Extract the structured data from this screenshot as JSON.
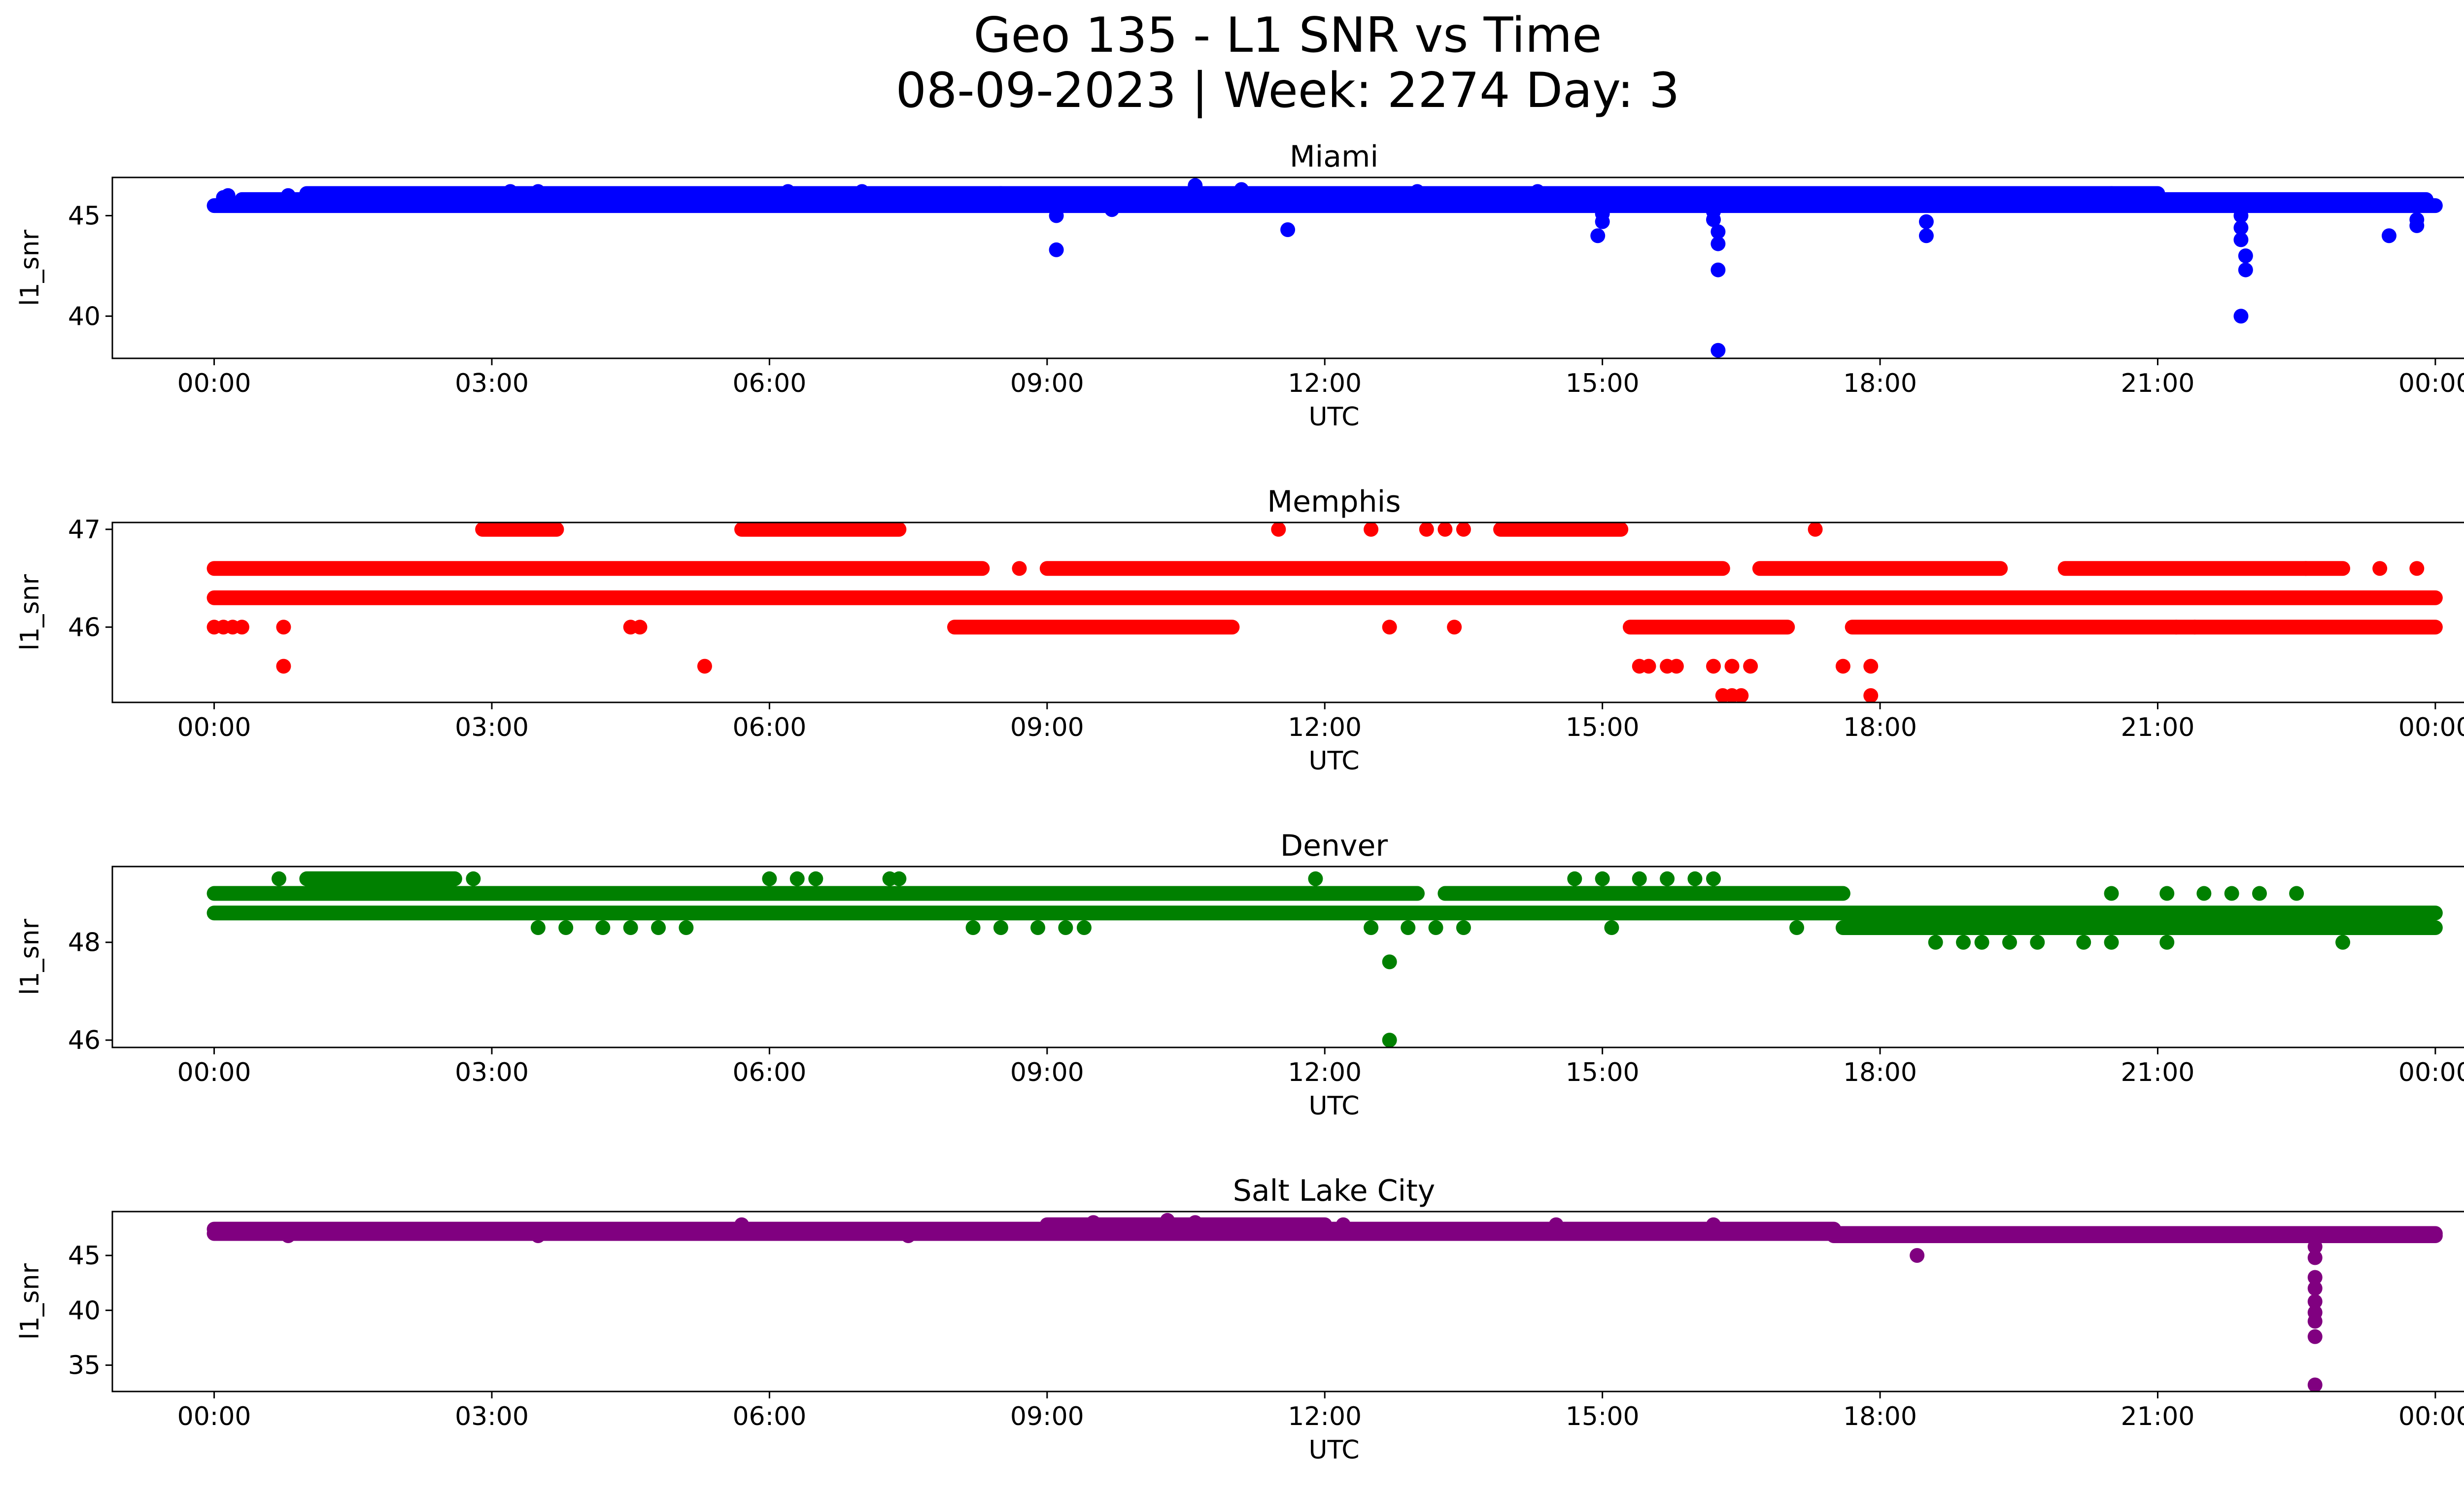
{
  "figure": {
    "title_line1": "Geo 135 - L1 SNR vs Time",
    "title_line2": "08-09-2023 | Week: 2274 Day: 3"
  },
  "chart_data": [
    {
      "type": "scatter",
      "title": "Miami",
      "xlabel": "UTC",
      "ylabel": "l1_snr",
      "color": "#0000ff",
      "xlim": [
        -1.1,
        25.3
      ],
      "ylim": [
        37.9,
        46.9
      ],
      "yticks": [
        40,
        45
      ],
      "xticks": [
        "00:00",
        "03:00",
        "06:00",
        "09:00",
        "12:00",
        "15:00",
        "18:00",
        "21:00",
        "00:00"
      ],
      "bands": [
        {
          "value": 45.5,
          "from": 0.0,
          "to": 24.0
        },
        {
          "value": 45.8,
          "from": 0.3,
          "to": 23.9
        },
        {
          "value": 46.1,
          "from": 1.0,
          "to": 21.0
        }
      ],
      "points": [
        [
          0.1,
          45.9
        ],
        [
          0.15,
          46.0
        ],
        [
          0.8,
          46.0
        ],
        [
          2.0,
          46.0
        ],
        [
          3.2,
          46.2
        ],
        [
          3.5,
          46.2
        ],
        [
          6.2,
          46.2
        ],
        [
          7.0,
          46.2
        ],
        [
          8.5,
          46.1
        ],
        [
          9.1,
          45.0
        ],
        [
          9.1,
          43.3
        ],
        [
          9.7,
          45.3
        ],
        [
          10.6,
          46.5
        ],
        [
          11.1,
          46.3
        ],
        [
          11.6,
          44.3
        ],
        [
          13.0,
          46.2
        ],
        [
          14.3,
          46.2
        ],
        [
          15.0,
          45.1
        ],
        [
          15.0,
          44.7
        ],
        [
          14.95,
          44.0
        ],
        [
          16.2,
          45.2
        ],
        [
          16.2,
          44.8
        ],
        [
          16.25,
          44.2
        ],
        [
          16.25,
          43.6
        ],
        [
          16.25,
          42.3
        ],
        [
          16.25,
          38.3
        ],
        [
          18.5,
          44.7
        ],
        [
          18.5,
          44.0
        ],
        [
          20.5,
          46.1
        ],
        [
          21.9,
          45.0
        ],
        [
          21.9,
          44.4
        ],
        [
          21.9,
          43.8
        ],
        [
          21.95,
          43.0
        ],
        [
          21.95,
          42.3
        ],
        [
          21.9,
          40.0
        ],
        [
          23.5,
          44.0
        ],
        [
          23.8,
          44.5
        ],
        [
          23.8,
          44.8
        ]
      ]
    },
    {
      "type": "scatter",
      "title": "Memphis",
      "xlabel": "UTC",
      "ylabel": "l1_snr",
      "color": "#ff0000",
      "xlim": [
        -1.1,
        25.3
      ],
      "ylim": [
        45.23,
        47.07
      ],
      "yticks": [
        46,
        47
      ],
      "xticks": [
        "00:00",
        "03:00",
        "06:00",
        "09:00",
        "12:00",
        "15:00",
        "18:00",
        "21:00",
        "00:00"
      ],
      "bands": [
        {
          "value": 46.6,
          "from": 0.0,
          "to": 8.3
        },
        {
          "value": 46.6,
          "from": 9.0,
          "to": 16.3
        },
        {
          "value": 46.6,
          "from": 16.7,
          "to": 19.3
        },
        {
          "value": 46.6,
          "from": 20.0,
          "to": 23.0
        },
        {
          "value": 46.3,
          "from": 0.0,
          "to": 24.0
        },
        {
          "value": 46.0,
          "from": 8.0,
          "to": 11.0
        },
        {
          "value": 46.0,
          "from": 15.3,
          "to": 17.0
        },
        {
          "value": 46.0,
          "from": 17.7,
          "to": 24.0
        },
        {
          "value": 47.0,
          "from": 2.9,
          "to": 3.7
        },
        {
          "value": 47.0,
          "from": 5.7,
          "to": 7.4
        },
        {
          "value": 47.0,
          "from": 13.9,
          "to": 15.2
        }
      ],
      "points": [
        [
          0.0,
          46.0
        ],
        [
          0.1,
          46.0
        ],
        [
          0.2,
          46.0
        ],
        [
          0.3,
          46.0
        ],
        [
          0.75,
          46.0
        ],
        [
          0.75,
          45.6
        ],
        [
          4.5,
          46.0
        ],
        [
          4.6,
          46.0
        ],
        [
          5.3,
          45.6
        ],
        [
          8.7,
          46.6
        ],
        [
          12.7,
          46.0
        ],
        [
          11.5,
          47.0
        ],
        [
          12.5,
          47.0
        ],
        [
          13.1,
          47.0
        ],
        [
          13.3,
          47.0
        ],
        [
          13.5,
          47.0
        ],
        [
          13.4,
          46.0
        ],
        [
          15.4,
          45.6
        ],
        [
          15.5,
          45.6
        ],
        [
          15.7,
          45.6
        ],
        [
          15.8,
          45.6
        ],
        [
          16.2,
          45.6
        ],
        [
          16.4,
          45.6
        ],
        [
          16.6,
          45.6
        ],
        [
          16.3,
          45.3
        ],
        [
          16.4,
          45.3
        ],
        [
          16.5,
          45.3
        ],
        [
          17.3,
          47.0
        ],
        [
          17.6,
          45.6
        ],
        [
          17.9,
          45.6
        ],
        [
          17.9,
          45.3
        ],
        [
          22.6,
          46.6
        ],
        [
          23.4,
          46.6
        ],
        [
          23.8,
          46.6
        ],
        [
          21.2,
          46.0
        ],
        [
          21.4,
          46.0
        ]
      ]
    },
    {
      "type": "scatter",
      "title": "Denver",
      "xlabel": "UTC",
      "ylabel": "l1_snr",
      "color": "#008000",
      "xlim": [
        -1.1,
        25.3
      ],
      "ylim": [
        45.85,
        49.55
      ],
      "yticks": [
        46,
        48
      ],
      "xticks": [
        "00:00",
        "03:00",
        "06:00",
        "09:00",
        "12:00",
        "15:00",
        "18:00",
        "21:00",
        "00:00"
      ],
      "bands": [
        {
          "value": 49.0,
          "from": 0.0,
          "to": 13.0
        },
        {
          "value": 49.0,
          "from": 13.3,
          "to": 17.6
        },
        {
          "value": 48.6,
          "from": 0.0,
          "to": 24.0
        },
        {
          "value": 48.3,
          "from": 17.6,
          "to": 24.0
        },
        {
          "value": 49.3,
          "from": 1.0,
          "to": 2.6
        }
      ],
      "points": [
        [
          0.7,
          49.3
        ],
        [
          2.8,
          49.3
        ],
        [
          6.0,
          49.3
        ],
        [
          6.3,
          49.3
        ],
        [
          6.5,
          49.3
        ],
        [
          7.3,
          49.3
        ],
        [
          7.4,
          49.3
        ],
        [
          11.9,
          49.3
        ],
        [
          3.5,
          48.3
        ],
        [
          3.8,
          48.3
        ],
        [
          4.2,
          48.3
        ],
        [
          4.5,
          48.3
        ],
        [
          4.8,
          48.3
        ],
        [
          5.1,
          48.3
        ],
        [
          8.2,
          48.3
        ],
        [
          8.5,
          48.3
        ],
        [
          8.9,
          48.3
        ],
        [
          9.2,
          48.3
        ],
        [
          9.4,
          48.3
        ],
        [
          12.5,
          48.3
        ],
        [
          12.9,
          48.3
        ],
        [
          13.2,
          48.3
        ],
        [
          13.5,
          48.3
        ],
        [
          12.7,
          47.6
        ],
        [
          12.7,
          46.0
        ],
        [
          14.7,
          49.3
        ],
        [
          15.0,
          49.3
        ],
        [
          15.4,
          49.3
        ],
        [
          15.7,
          49.3
        ],
        [
          16.0,
          49.3
        ],
        [
          16.2,
          49.3
        ],
        [
          15.1,
          48.3
        ],
        [
          17.1,
          48.3
        ],
        [
          18.6,
          48.0
        ],
        [
          18.9,
          48.0
        ],
        [
          19.1,
          48.0
        ],
        [
          19.4,
          48.0
        ],
        [
          19.7,
          48.0
        ],
        [
          20.2,
          48.0
        ],
        [
          20.5,
          48.0
        ],
        [
          21.1,
          48.0
        ],
        [
          23.0,
          48.0
        ],
        [
          20.5,
          49.0
        ],
        [
          21.1,
          49.0
        ],
        [
          21.5,
          49.0
        ],
        [
          21.8,
          49.0
        ],
        [
          22.1,
          49.0
        ],
        [
          22.5,
          49.0
        ]
      ]
    },
    {
      "type": "scatter",
      "title": "Salt Lake City",
      "xlabel": "UTC",
      "ylabel": "l1_snr",
      "color": "#800080",
      "xlim": [
        -1.1,
        25.3
      ],
      "ylim": [
        32.6,
        49.0
      ],
      "yticks": [
        35,
        40,
        45
      ],
      "xticks": [
        "00:00",
        "03:00",
        "06:00",
        "09:00",
        "12:00",
        "15:00",
        "18:00",
        "21:00",
        "00:00"
      ],
      "bands": [
        {
          "value": 47.4,
          "from": 0.0,
          "to": 17.5
        },
        {
          "value": 47.0,
          "from": 0.0,
          "to": 24.0
        },
        {
          "value": 47.8,
          "from": 9.0,
          "to": 12.0
        },
        {
          "value": 46.8,
          "from": 17.5,
          "to": 24.0
        }
      ],
      "points": [
        [
          0.8,
          46.8
        ],
        [
          3.5,
          46.8
        ],
        [
          5.7,
          47.8
        ],
        [
          7.5,
          46.8
        ],
        [
          9.5,
          48.0
        ],
        [
          10.3,
          48.2
        ],
        [
          10.6,
          48.0
        ],
        [
          12.2,
          47.8
        ],
        [
          14.5,
          47.8
        ],
        [
          16.2,
          47.8
        ],
        [
          18.4,
          45.0
        ],
        [
          22.7,
          45.8
        ],
        [
          22.7,
          44.8
        ],
        [
          22.7,
          43.0
        ],
        [
          22.7,
          42.0
        ],
        [
          22.7,
          40.8
        ],
        [
          22.7,
          39.8
        ],
        [
          22.7,
          39.0
        ],
        [
          22.7,
          37.6
        ],
        [
          22.7,
          33.2
        ]
      ]
    }
  ]
}
